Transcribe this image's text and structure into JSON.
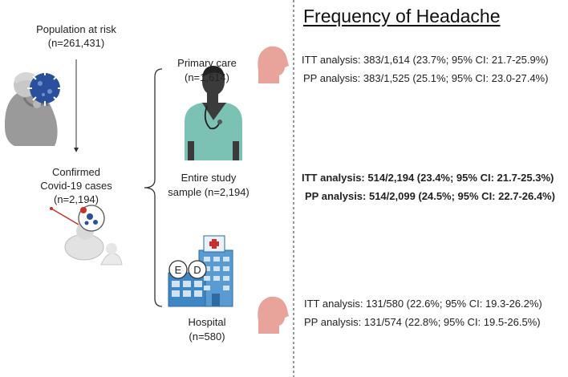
{
  "left": {
    "population_label": "Population at risk",
    "population_n": "(n=261,431)",
    "confirmed_label_1": "Confirmed",
    "confirmed_label_2": "Covid-19 cases",
    "confirmed_n": "(n=2,194)"
  },
  "middle": {
    "primary_label": "Primary care",
    "primary_n": "(n=1,614)",
    "entire_label_1": "Entire study",
    "entire_label_2": "sample (n=2,194)",
    "hospital_label": "Hospital",
    "hospital_n": "(n=580)",
    "ed_letters": [
      "E",
      "D"
    ]
  },
  "right": {
    "title": "Frequency of Headache",
    "primary_itt": "ITT analysis: 383/1,614 (23.7%; 95% CI: 21.7-25.9%)",
    "primary_pp": "PP analysis: 383/1,525 (25.1%; 95% CI: 23.0-27.4%)",
    "entire_itt": "ITT analysis: 514/2,194 (23.4%; 95% CI: 21.7-25.3%)",
    "entire_pp": "PP analysis: 514/2,099 (24.5%; 95% CI: 22.7-26.4%)",
    "hospital_itt": "ITT analysis: 131/580 (22.6%; 95% CI: 19.3-26.2%)",
    "hospital_pp": "PP analysis: 131/574 (22.8%; 95% CI: 19.5-26.5%)"
  },
  "colors": {
    "head_icon": "#e8a39a",
    "virus": "#2a4f9c",
    "scrubs": "#7cc2b4",
    "doctor_skin": "#3b3b3b",
    "hospital_blue": "#3f86c4"
  }
}
